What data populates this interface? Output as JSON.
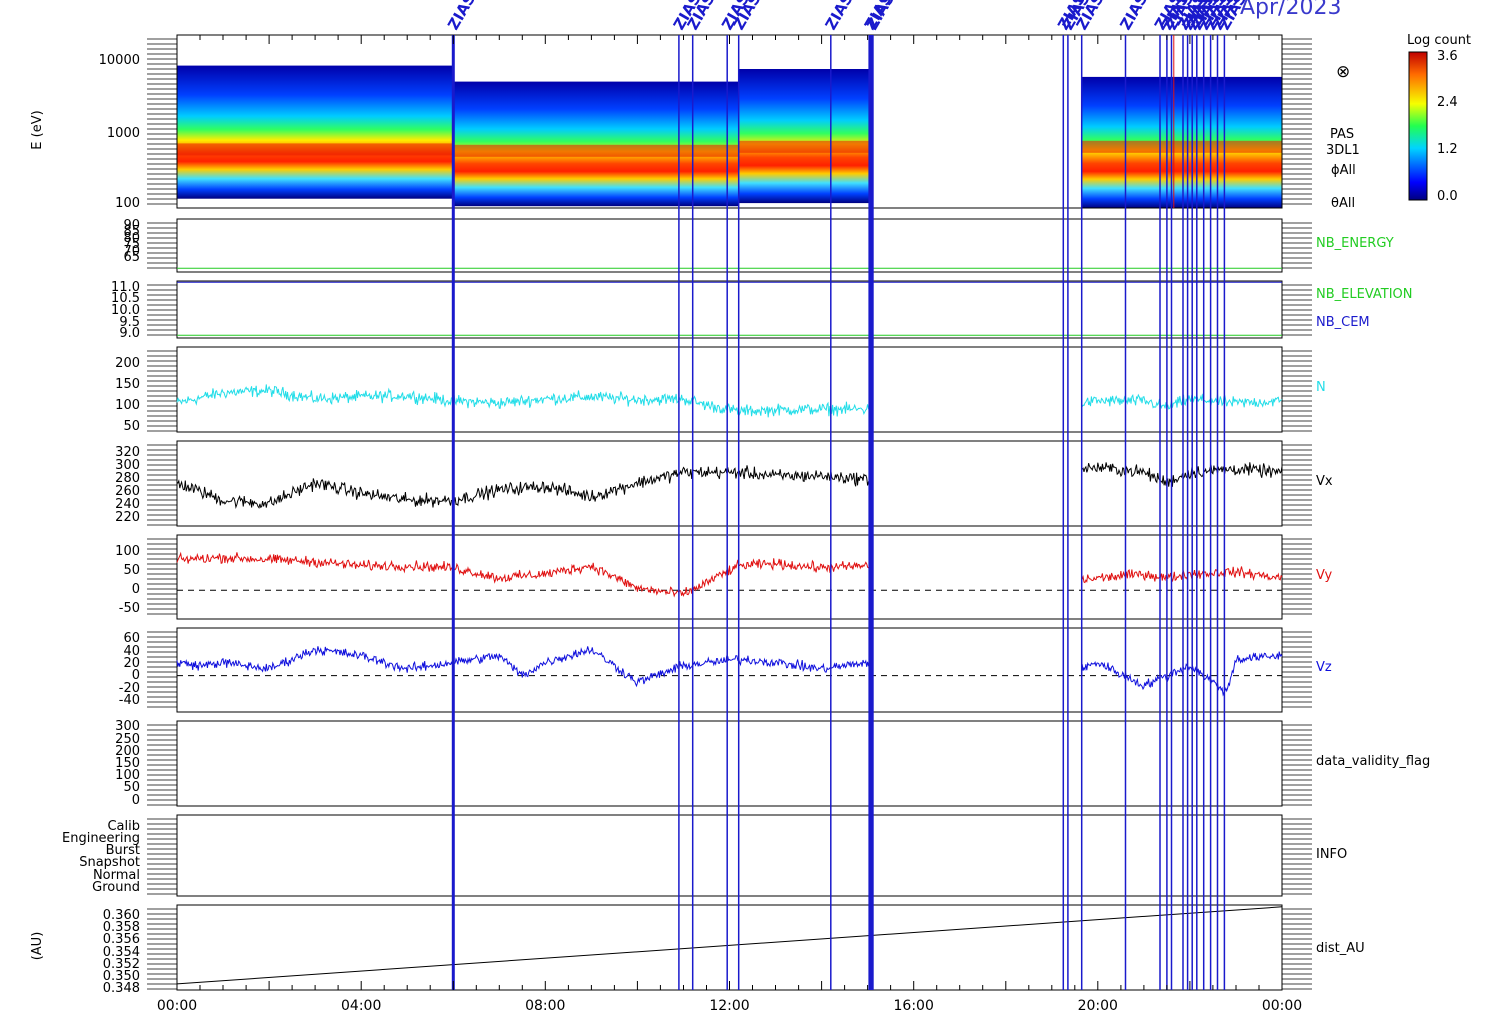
{
  "header": {
    "date_text": "Apr/2023",
    "marker_label": "ZIAS"
  },
  "colorbar": {
    "title": "Log count",
    "ticks": [
      "3.6",
      "2.4",
      "1.2",
      "0.0"
    ]
  },
  "right_labels": {
    "symbol": "⊗",
    "pas_lines": [
      "PAS",
      "3DL1",
      "ϕAll",
      "θAll"
    ],
    "nb_energy": "NB_ENERGY",
    "nb_elevation": "NB_ELEVATION",
    "nb_cem": "NB_CEM",
    "n": "N",
    "vx": "Vx",
    "vy": "Vy",
    "vz": "Vz",
    "validity": "data_validity_flag",
    "info": "INFO",
    "dist": "dist_AU"
  },
  "colors": {
    "n": "#22dde8",
    "vx": "#000000",
    "vy": "#e01010",
    "vz": "#1010dd",
    "marker": "#1a1acc",
    "nb_energy": "#22cc22",
    "nb_elevation": "#22cc22",
    "nb_cem": "#1a1acc"
  },
  "chart_data": {
    "type": "line",
    "x_ticks": [
      "00:00",
      "04:00",
      "08:00",
      "12:00",
      "16:00",
      "20:00",
      "00:00"
    ],
    "x_tick_hours": [
      0,
      4,
      8,
      12,
      16,
      20,
      24
    ],
    "data_gaps_hours": [
      [
        15.05,
        19.65
      ]
    ],
    "event_marker_hours": [
      6.0,
      10.9,
      11.2,
      11.95,
      12.2,
      14.2,
      15.05,
      15.1,
      19.25,
      19.35,
      19.65,
      20.6,
      21.35,
      21.5,
      21.6,
      21.85,
      21.95,
      22.05,
      22.15,
      22.3,
      22.45,
      22.6,
      22.75
    ],
    "panels": [
      {
        "id": "spectrogram",
        "ylabel": "E (eV)",
        "scale": "log",
        "ylim": [
          100,
          13000
        ],
        "yticks": [
          "10000",
          "1000",
          "100"
        ],
        "segments": [
          {
            "start_hour": 0.0,
            "end_hour": 6.0,
            "e_min_ev": 130,
            "e_max_ev": 5500,
            "peak_ev": 520
          },
          {
            "start_hour": 6.0,
            "end_hour": 12.2,
            "e_min_ev": 105,
            "e_max_ev": 3500,
            "peak_ev": 500
          },
          {
            "start_hour": 12.2,
            "end_hour": 15.05,
            "e_min_ev": 115,
            "e_max_ev": 5000,
            "peak_ev": 560
          },
          {
            "start_hour": 19.65,
            "end_hour": 24.0,
            "e_min_ev": 100,
            "e_max_ev": 4000,
            "peak_ev": 560
          }
        ]
      },
      {
        "id": "nb_energy",
        "ylim": [
          63,
          91
        ],
        "yticks": [
          "90",
          "85",
          "80",
          "75",
          "70",
          "65"
        ],
        "hlines": [
          {
            "y": 65,
            "key": "nb_energy"
          }
        ]
      },
      {
        "id": "nb_elev_cem",
        "ylim": [
          8.9,
          11.05
        ],
        "yticks": [
          "11.0",
          "10.5",
          "10.0",
          "9.5",
          "9.0"
        ],
        "hlines": [
          {
            "y": 11.0,
            "key": "nb_cem"
          },
          {
            "y": 9.0,
            "key": "nb_elevation"
          }
        ]
      },
      {
        "id": "n",
        "ylim": [
          30,
          235
        ],
        "yticks": [
          "200",
          "150",
          "100",
          "50"
        ],
        "series": {
          "key": "n",
          "hours": [
            0,
            1,
            2,
            3,
            4,
            5,
            6,
            7,
            8,
            9,
            10,
            11,
            11.5,
            12.2,
            13,
            14,
            15.0,
            19.65,
            20,
            21,
            21.5,
            22,
            23,
            24
          ],
          "values": [
            100,
            125,
            130,
            110,
            115,
            118,
            105,
            100,
            110,
            115,
            108,
            110,
            95,
            80,
            83,
            85,
            85,
            100,
            105,
            105,
            90,
            110,
            100,
            105
          ],
          "noise": 14
        }
      },
      {
        "id": "vx",
        "ylim": [
          208,
          330
        ],
        "yticks": [
          "320",
          "300",
          "280",
          "260",
          "240",
          "220"
        ],
        "series": {
          "key": "vx",
          "hours": [
            0,
            1,
            2,
            3,
            4,
            5,
            6,
            7,
            8,
            9,
            10,
            11,
            12.2,
            13,
            14,
            15.0,
            19.65,
            20,
            21,
            21.5,
            22,
            23,
            24
          ],
          "values": [
            270,
            245,
            240,
            270,
            255,
            245,
            245,
            260,
            265,
            250,
            270,
            285,
            285,
            280,
            280,
            275,
            290,
            292,
            285,
            270,
            285,
            290,
            285
          ],
          "noise": 9
        }
      },
      {
        "id": "vy",
        "ylim": [
          -70,
          135
        ],
        "yticks": [
          "100",
          "50",
          "0",
          "-50"
        ],
        "zero_line": true,
        "series": {
          "key": "vy",
          "hours": [
            0,
            1,
            2,
            3,
            4,
            5,
            6,
            7,
            8,
            9,
            10,
            11,
            12.2,
            13,
            14,
            15.0,
            19.65,
            20,
            21,
            21.5,
            22,
            23,
            24
          ],
          "values": [
            75,
            80,
            75,
            70,
            60,
            60,
            55,
            30,
            40,
            60,
            5,
            -10,
            60,
            65,
            55,
            60,
            25,
            30,
            40,
            30,
            40,
            45,
            30
          ],
          "noise": 12
        }
      },
      {
        "id": "vz",
        "ylim": [
          -55,
          72
        ],
        "yticks": [
          "60",
          "40",
          "20",
          "0",
          "-20",
          "-40"
        ],
        "zero_line": true,
        "series": {
          "key": "vz",
          "hours": [
            0,
            0.5,
            1,
            2,
            3,
            4,
            5,
            6,
            7,
            7.5,
            8,
            9,
            10,
            11,
            12.2,
            13,
            14,
            15.0,
            19.65,
            20,
            21,
            21.5,
            22,
            22.8,
            23,
            24
          ],
          "values": [
            20,
            15,
            20,
            10,
            40,
            30,
            10,
            20,
            30,
            0,
            20,
            40,
            -10,
            15,
            25,
            20,
            10,
            20,
            10,
            20,
            -15,
            0,
            15,
            -25,
            25,
            30
          ],
          "noise": 7
        }
      },
      {
        "id": "validity",
        "ylim": [
          -10,
          310
        ],
        "yticks": [
          "300",
          "250",
          "200",
          "150",
          "100",
          "50",
          "0"
        ]
      },
      {
        "id": "info",
        "yticks": [
          "Calib",
          "Engineering",
          "Burst",
          "Snapshot",
          "Normal",
          "Ground"
        ]
      },
      {
        "id": "dist",
        "ylabel": "(AU)",
        "ylim": [
          0.3475,
          0.3615
        ],
        "yticks": [
          "0.360",
          "0.358",
          "0.356",
          "0.354",
          "0.352",
          "0.350",
          "0.348"
        ],
        "series": {
          "key": "vx",
          "hours": [
            0,
            24
          ],
          "values": [
            0.3485,
            0.3612
          ],
          "noise": 0
        }
      }
    ]
  }
}
